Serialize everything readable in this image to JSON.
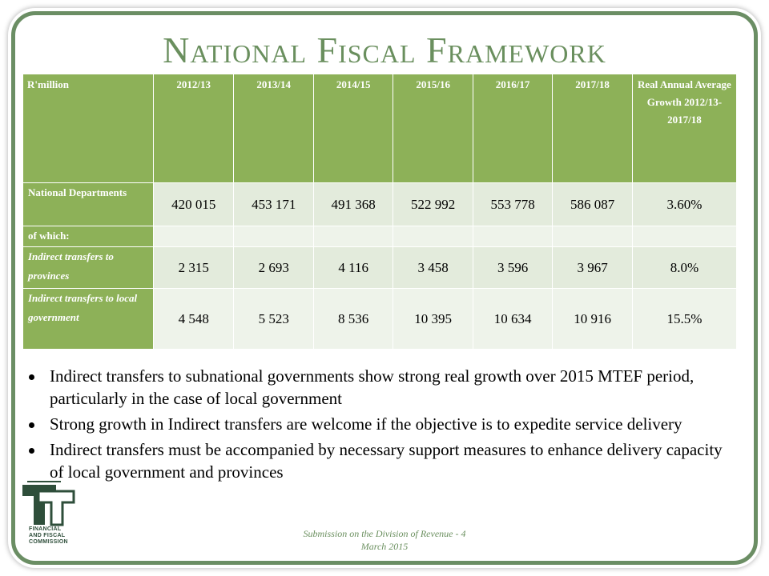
{
  "slide": {
    "title": "National Fiscal Framework",
    "footer_line1": "Submission on the Division of Revenue - 4",
    "footer_line2": "March 2015",
    "logo_text": [
      "FINANCIAL",
      "AND FISCAL",
      "COMMISSION"
    ]
  },
  "colors": {
    "accent": "#6b8e64",
    "header_fill": "#8db158",
    "cell_fill": "#e3ebdc",
    "cell_fill_alt": "#eef3ea"
  },
  "table": {
    "headers": [
      "R'million",
      "2012/13",
      "2013/14",
      "2014/15",
      "2015/16",
      "2016/17",
      "2017/18",
      "Real Annual Average Growth 2012/13-2017/18"
    ],
    "rows": [
      {
        "label": "National Departments",
        "italic": false,
        "values": [
          "420 015",
          "453 171",
          "491 368",
          "522 992",
          "553 778",
          "586 087",
          "3.60%"
        ]
      },
      {
        "label": "of which:",
        "italic": false,
        "values": [
          "",
          "",
          "",
          "",
          "",
          "",
          ""
        ]
      },
      {
        "label": "Indirect transfers to provinces",
        "italic": true,
        "values": [
          "2 315",
          "2 693",
          "4 116",
          "3 458",
          "3 596",
          "3 967",
          "8.0%"
        ]
      },
      {
        "label": "Indirect transfers to local government",
        "italic": true,
        "values": [
          "4 548",
          "5 523",
          "8 536",
          "10 395",
          "10 634",
          "10 916",
          "15.5%"
        ]
      }
    ]
  },
  "bullets": [
    "Indirect transfers to subnational governments show strong real growth over 2015 MTEF period, particularly in the case of local government",
    "Strong growth in Indirect transfers are welcome if the objective is to expedite service delivery",
    "Indirect transfers must be accompanied by necessary support measures to enhance delivery capacity of local government and provinces"
  ]
}
